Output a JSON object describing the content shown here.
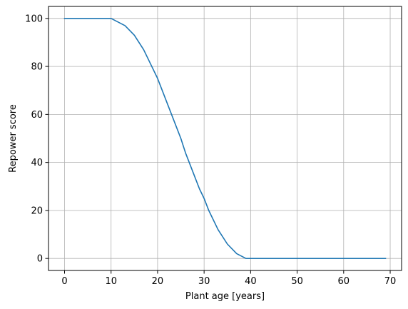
{
  "chart_data": {
    "type": "line",
    "title": "",
    "xlabel": "Plant age [years]",
    "ylabel": "Repower score",
    "xlim": [
      -3.45,
      72.45
    ],
    "ylim": [
      -5,
      105
    ],
    "xticks": [
      0,
      10,
      20,
      30,
      40,
      50,
      60,
      70
    ],
    "yticks": [
      0,
      20,
      40,
      60,
      80,
      100
    ],
    "grid": true,
    "legend": "none",
    "series": [
      {
        "color": "#1f77b4",
        "x": [
          0,
          10,
          13,
          15,
          17,
          19,
          20,
          22,
          24,
          25,
          26,
          28,
          29,
          30,
          31,
          33,
          35,
          37,
          39,
          40,
          50,
          60,
          69
        ],
        "y": [
          100,
          100,
          97,
          93,
          87,
          79,
          75,
          65,
          55,
          50,
          44,
          34,
          29,
          25,
          20,
          12,
          6,
          2,
          0,
          0,
          0,
          0,
          0
        ]
      }
    ]
  }
}
